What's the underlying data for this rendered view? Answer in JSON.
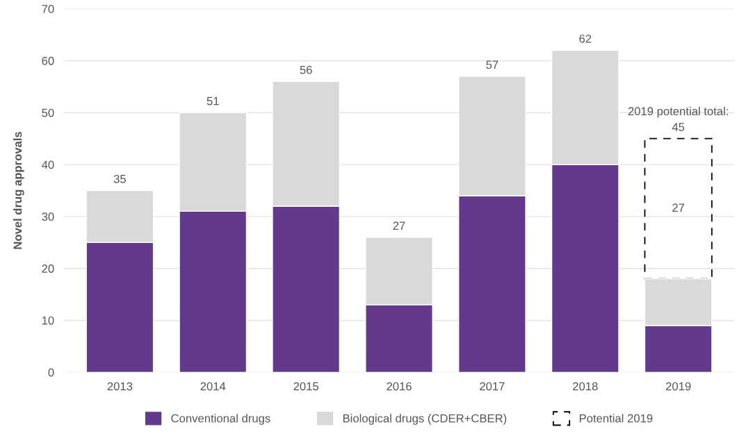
{
  "chart_data": {
    "type": "bar",
    "ylabel": "Novel drug approvals",
    "categories": [
      "2013",
      "2014",
      "2015",
      "2016",
      "2017",
      "2018",
      "2019"
    ],
    "stacked": true,
    "series": [
      {
        "name": "Conventional drugs",
        "color": "#62398c",
        "values": [
          25,
          31,
          32,
          13,
          34,
          40,
          9
        ]
      },
      {
        "name": "Biological drugs (CDER+CBER)",
        "color": "#d9d9d9",
        "values": [
          10,
          19,
          24,
          13,
          23,
          22,
          9
        ]
      },
      {
        "name": "Potential 2019",
        "color": "#000000",
        "line_style": "dashed",
        "values": [
          null,
          null,
          null,
          null,
          null,
          null,
          27
        ],
        "value_labels": [
          null,
          null,
          null,
          null,
          null,
          null,
          "27"
        ]
      }
    ],
    "totals": [
      "35",
      "51",
      "56",
      "27",
      "57",
      "62",
      "2019 potential total:\n45"
    ],
    "ylim": [
      0,
      70
    ],
    "yticks": [
      0,
      10,
      20,
      30,
      40,
      50,
      60,
      70
    ],
    "grid": "y",
    "legend": "bottom"
  }
}
